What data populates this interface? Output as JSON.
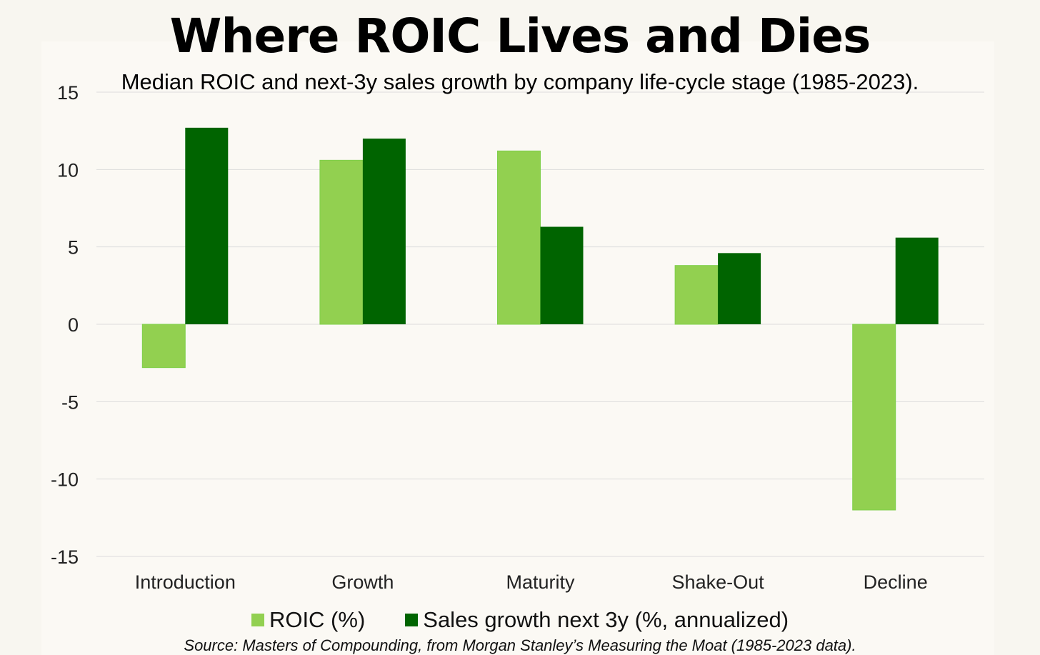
{
  "header": {
    "title": "Where ROIC Lives and Dies",
    "subtitle": "Median ROIC and next-3y sales growth by company life-cycle stage (1985-2023)."
  },
  "footer": {
    "source": "Source: Masters of Compounding, from Morgan Stanley’s Measuring the Moat (1985-2023 data)."
  },
  "colors": {
    "roic": "#92d050",
    "roic_edge": "#7fcf4a",
    "sales": "#006400",
    "grid": "#dcdcdc",
    "axis_text": "#222222"
  },
  "chart_data": {
    "type": "bar",
    "title": "Where ROIC Lives and Dies",
    "subtitle": "Median ROIC and next-3y sales growth by company life-cycle stage (1985-2023).",
    "xlabel": "",
    "ylabel": "",
    "ylim": [
      -15,
      15
    ],
    "yticks": [
      15,
      10,
      5,
      0,
      -5,
      -10,
      -15
    ],
    "grid": true,
    "legend_position": "bottom",
    "categories": [
      "Introduction",
      "Growth",
      "Maturity",
      "Shake-Out",
      "Decline"
    ],
    "series": [
      {
        "name": "ROIC (%)",
        "values": [
          -2.8,
          10.6,
          11.2,
          3.8,
          -12.0
        ]
      },
      {
        "name": "Sales growth next 3y (%, annualized)",
        "values": [
          12.7,
          12.0,
          6.3,
          4.6,
          5.6
        ]
      }
    ]
  }
}
